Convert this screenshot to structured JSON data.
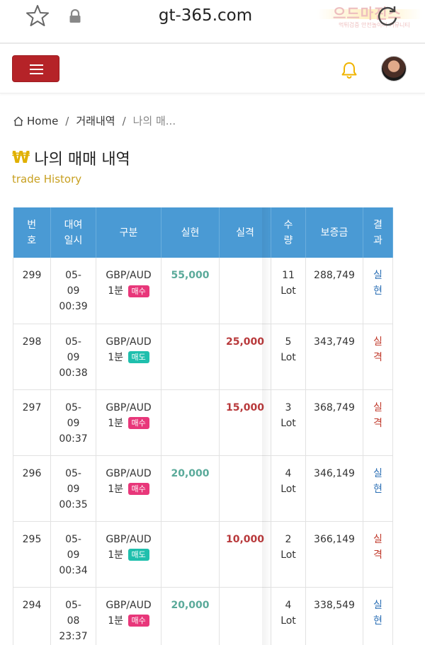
{
  "browser": {
    "url": "gt-365.com",
    "watermark_main": "으드마진스",
    "watermark_sub": "먹튀검증 안전놀이터 커뮤니티"
  },
  "header": {
    "menu_icon": "hamburger-icon",
    "notification_icon": "bell-icon",
    "accent_color": "#b52328"
  },
  "breadcrumb": {
    "home": "Home",
    "separator": "/",
    "level1": "거래내역",
    "current": "나의 매..."
  },
  "page": {
    "currency_symbol": "₩",
    "title": "나의 매매 내역",
    "subtitle": "trade History"
  },
  "table": {
    "headers": {
      "no": [
        "번",
        "호"
      ],
      "time": [
        "대여",
        "일시"
      ],
      "type": "구분",
      "profit": "실현",
      "loss": "실격",
      "qty": [
        "수",
        "량"
      ],
      "deposit": "보증금",
      "result": [
        "결",
        "과"
      ]
    },
    "rows": [
      {
        "no": "299",
        "date": [
          "05-",
          "09",
          "00:39"
        ],
        "pair": "GBP/AUD",
        "period": "1분",
        "side": "매수",
        "side_type": "buy",
        "profit": "55,000",
        "loss": "",
        "qty": [
          "11",
          "Lot"
        ],
        "deposit": "288,749",
        "result": [
          "실",
          "현"
        ],
        "result_type": "win"
      },
      {
        "no": "298",
        "date": [
          "05-",
          "09",
          "00:38"
        ],
        "pair": "GBP/AUD",
        "period": "1분",
        "side": "매도",
        "side_type": "sell",
        "profit": "",
        "loss": "25,000",
        "qty": [
          "5",
          "Lot"
        ],
        "deposit": "343,749",
        "result": [
          "실",
          "격"
        ],
        "result_type": "loss"
      },
      {
        "no": "297",
        "date": [
          "05-",
          "09",
          "00:37"
        ],
        "pair": "GBP/AUD",
        "period": "1분",
        "side": "매수",
        "side_type": "buy",
        "profit": "",
        "loss": "15,000",
        "qty": [
          "3",
          "Lot"
        ],
        "deposit": "368,749",
        "result": [
          "실",
          "격"
        ],
        "result_type": "loss"
      },
      {
        "no": "296",
        "date": [
          "05-",
          "09",
          "00:35"
        ],
        "pair": "GBP/AUD",
        "period": "1분",
        "side": "매수",
        "side_type": "buy",
        "profit": "20,000",
        "loss": "",
        "qty": [
          "4",
          "Lot"
        ],
        "deposit": "346,149",
        "result": [
          "실",
          "현"
        ],
        "result_type": "win"
      },
      {
        "no": "295",
        "date": [
          "05-",
          "09",
          "00:34"
        ],
        "pair": "GBP/AUD",
        "period": "1분",
        "side": "매도",
        "side_type": "sell",
        "profit": "",
        "loss": "10,000",
        "qty": [
          "2",
          "Lot"
        ],
        "deposit": "366,149",
        "result": [
          "실",
          "격"
        ],
        "result_type": "loss"
      },
      {
        "no": "294",
        "date": [
          "05-",
          "08",
          "23:37"
        ],
        "pair": "GBP/AUD",
        "period": "1분",
        "side": "매수",
        "side_type": "buy",
        "profit": "20,000",
        "loss": "",
        "qty": [
          "4",
          "Lot"
        ],
        "deposit": "338,549",
        "result": [
          "실",
          "현"
        ],
        "result_type": "win"
      }
    ]
  }
}
